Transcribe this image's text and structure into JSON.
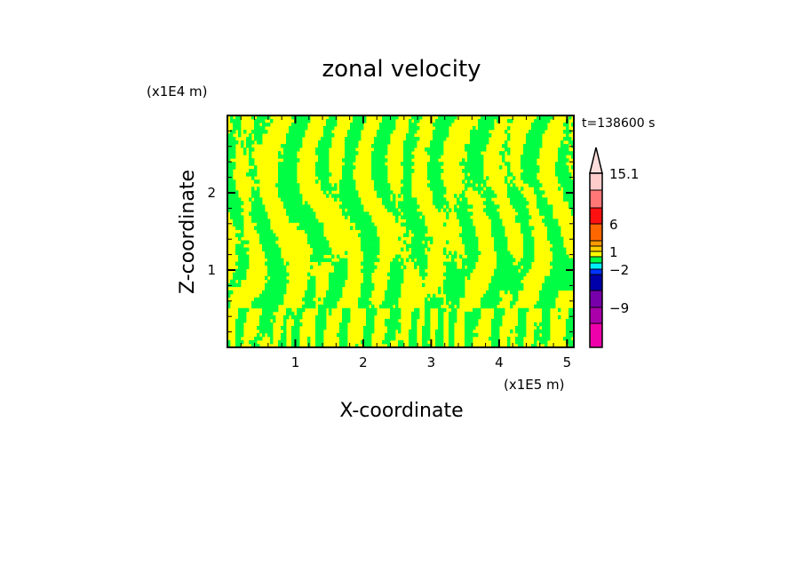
{
  "chart_data": {
    "type": "heatmap",
    "title": "zonal velocity",
    "xlabel": "X-coordinate",
    "ylabel": "Z-coordinate",
    "x_unit": "(x1E5 m)",
    "y_unit": "(x1E4 m)",
    "time_label": "t=138600 s",
    "xlim": [
      0,
      5.1
    ],
    "ylim": [
      0,
      3
    ],
    "xticks": [
      "1",
      "2",
      "3",
      "4",
      "5"
    ],
    "xtick_values": [
      1,
      2,
      3,
      4,
      5
    ],
    "yticks": [
      "1",
      "2"
    ],
    "ytick_values": [
      1,
      2
    ],
    "colorbar": {
      "levels": [
        15.1,
        12,
        9,
        6,
        3,
        2,
        1,
        0,
        -1,
        -2,
        -3,
        -6,
        -9,
        -12
      ],
      "labels": [
        "15.1",
        "6",
        "1",
        "-2",
        "-9"
      ],
      "label_values": [
        15.1,
        6,
        1,
        -2,
        -9
      ],
      "colors": [
        "#ffcccc",
        "#ff7777",
        "#ff1111",
        "#ff6600",
        "#ff9900",
        "#ffcc00",
        "#ffff00",
        "#00ff44",
        "#00eeff",
        "#0033ff",
        "#0000aa",
        "#7700aa",
        "#aa00aa",
        "#ee00aa"
      ],
      "overflow_color": "#ffdddd"
    },
    "field_description_levels": {
      "yellow_range": [
        0,
        1
      ],
      "green_range": [
        -1,
        0
      ],
      "yellow": "#ffff00",
      "green": "#00ff44"
    }
  }
}
